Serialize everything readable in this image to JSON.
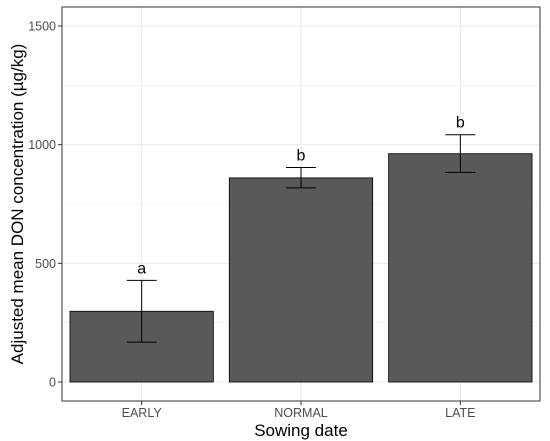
{
  "chart_data": {
    "type": "bar",
    "title": "",
    "xlabel": "Sowing date",
    "ylabel": "Adjusted mean DON concentration (µg/kg)",
    "categories": [
      "EARLY",
      "NORMAL",
      "LATE"
    ],
    "values": [
      298,
      860,
      962
    ],
    "error_low": [
      168,
      818,
      883
    ],
    "error_high": [
      428,
      904,
      1042
    ],
    "significance": [
      "a",
      "b",
      "b"
    ],
    "ylim": [
      -80,
      1580
    ],
    "yticks": [
      0,
      500,
      1000,
      1500
    ],
    "ytick_labels": [
      "0",
      "500",
      "1000",
      "1500"
    ],
    "grid": true,
    "legend": "none",
    "colors": {
      "bar": "#595959",
      "bar_edge": "#000000",
      "grid": "#ebebeb",
      "panel_border": "#333333"
    }
  }
}
